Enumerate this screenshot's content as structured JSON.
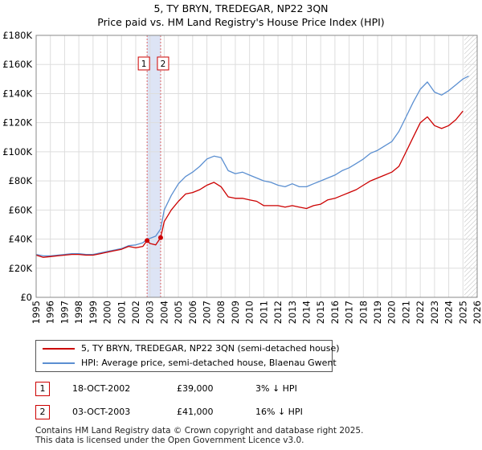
{
  "chart_data": {
    "type": "line",
    "title": "5, TY BRYN, TREDEGAR, NP22 3QN",
    "subtitle": "Price paid vs. HM Land Registry's House Price Index (HPI)",
    "ylabel": "",
    "xlabel": "",
    "ylim": [
      0,
      180000
    ],
    "xlim": [
      1995,
      2026
    ],
    "y_ticks": [
      0,
      20000,
      40000,
      60000,
      80000,
      100000,
      120000,
      140000,
      160000,
      180000
    ],
    "y_tick_labels": [
      "£0",
      "£20K",
      "£40K",
      "£60K",
      "£80K",
      "£100K",
      "£120K",
      "£140K",
      "£160K",
      "£180K"
    ],
    "x_ticks": [
      1995,
      1996,
      1997,
      1998,
      1999,
      2000,
      2001,
      2002,
      2003,
      2004,
      2005,
      2006,
      2007,
      2008,
      2009,
      2010,
      2011,
      2012,
      2013,
      2014,
      2015,
      2016,
      2017,
      2018,
      2019,
      2020,
      2021,
      2022,
      2023,
      2024,
      2025,
      2026
    ],
    "x_tick_labels": [
      "1995",
      "1996",
      "1997",
      "1998",
      "1999",
      "2000",
      "2001",
      "2002",
      "2003",
      "2004",
      "2005",
      "2006",
      "2007",
      "2008",
      "2009",
      "2010",
      "2011",
      "2012",
      "2013",
      "2014",
      "2015",
      "2016",
      "2017",
      "2018",
      "2019",
      "2020",
      "2021",
      "2022",
      "2023",
      "2024",
      "2025",
      "2026"
    ],
    "grid": true,
    "highlight_span": [
      2002.8,
      2003.75
    ],
    "forecast_start": 2025.1,
    "series": [
      {
        "name": "5, TY BRYN, TREDEGAR, NP22 3QN (semi-detached house)",
        "color": "#cc0000",
        "x": [
          1995.0,
          1995.5,
          1996.0,
          1996.5,
          1997.0,
          1997.5,
          1998.0,
          1998.5,
          1999.0,
          1999.5,
          2000.0,
          2000.5,
          2001.0,
          2001.5,
          2002.0,
          2002.5,
          2002.8,
          2003.0,
          2003.4,
          2003.75,
          2004.0,
          2004.5,
          2005.0,
          2005.5,
          2006.0,
          2006.5,
          2007.0,
          2007.5,
          2008.0,
          2008.5,
          2009.0,
          2009.5,
          2010.0,
          2010.5,
          2011.0,
          2011.5,
          2012.0,
          2012.5,
          2013.0,
          2013.5,
          2014.0,
          2014.5,
          2015.0,
          2015.5,
          2016.0,
          2016.5,
          2017.0,
          2017.5,
          2018.0,
          2018.5,
          2019.0,
          2019.5,
          2020.0,
          2020.5,
          2021.0,
          2021.5,
          2022.0,
          2022.5,
          2023.0,
          2023.5,
          2024.0,
          2024.5,
          2025.0
        ],
        "y": [
          29000,
          27500,
          28000,
          28500,
          29000,
          29500,
          29500,
          29000,
          29000,
          30000,
          31000,
          32000,
          33000,
          35000,
          34000,
          35000,
          39000,
          37000,
          36000,
          41000,
          52000,
          60000,
          66000,
          71000,
          72000,
          74000,
          77000,
          79000,
          76000,
          69000,
          68000,
          68000,
          67000,
          66000,
          63000,
          63000,
          63000,
          62000,
          63000,
          62000,
          61000,
          63000,
          64000,
          67000,
          68000,
          70000,
          72000,
          74000,
          77000,
          80000,
          82000,
          84000,
          86000,
          90000,
          100000,
          110000,
          120000,
          124000,
          118000,
          116000,
          118000,
          122000,
          128000
        ]
      },
      {
        "name": "HPI: Average price, semi-detached house, Blaenau Gwent",
        "color": "#5b8fd1",
        "x": [
          1995.0,
          1995.5,
          1996.0,
          1996.5,
          1997.0,
          1997.5,
          1998.0,
          1998.5,
          1999.0,
          1999.5,
          2000.0,
          2000.5,
          2001.0,
          2001.5,
          2002.0,
          2002.5,
          2002.8,
          2003.0,
          2003.4,
          2003.75,
          2004.0,
          2004.5,
          2005.0,
          2005.5,
          2006.0,
          2006.5,
          2007.0,
          2007.5,
          2008.0,
          2008.5,
          2009.0,
          2009.5,
          2010.0,
          2010.5,
          2011.0,
          2011.5,
          2012.0,
          2012.5,
          2013.0,
          2013.5,
          2014.0,
          2014.5,
          2015.0,
          2015.5,
          2016.0,
          2016.5,
          2017.0,
          2017.5,
          2018.0,
          2018.5,
          2019.0,
          2019.5,
          2020.0,
          2020.5,
          2021.0,
          2021.5,
          2022.0,
          2022.5,
          2023.0,
          2023.5,
          2024.0,
          2024.5,
          2025.0,
          2025.4
        ],
        "y": [
          29500,
          28500,
          28500,
          29000,
          29500,
          30000,
          30000,
          29500,
          29500,
          30500,
          31500,
          32500,
          33500,
          35500,
          36000,
          37500,
          40000,
          40500,
          42000,
          47000,
          60000,
          70000,
          78000,
          83000,
          86000,
          90000,
          95000,
          97000,
          96000,
          87000,
          85000,
          86000,
          84000,
          82000,
          80000,
          79000,
          77000,
          76000,
          78000,
          76000,
          76000,
          78000,
          80000,
          82000,
          84000,
          87000,
          89000,
          92000,
          95000,
          99000,
          101000,
          104000,
          107000,
          114000,
          124000,
          134000,
          143000,
          148000,
          141000,
          139000,
          142000,
          146000,
          150000,
          152000
        ]
      }
    ],
    "sales": [
      {
        "id": "1",
        "x": 2002.8,
        "y": 39000
      },
      {
        "id": "2",
        "x": 2003.75,
        "y": 41000
      }
    ]
  },
  "legend": {
    "property_label": "5, TY BRYN, TREDEGAR, NP22 3QN (semi-detached house)",
    "hpi_label": "HPI: Average price, semi-detached house, Blaenau Gwent"
  },
  "transactions": [
    {
      "id": "1",
      "date": "18-OCT-2002",
      "price": "£39,000",
      "hpi": "3% ↓ HPI"
    },
    {
      "id": "2",
      "date": "03-OCT-2003",
      "price": "£41,000",
      "hpi": "16% ↓ HPI"
    }
  ],
  "footer": {
    "line1": "Contains HM Land Registry data © Crown copyright and database right 2025.",
    "line2": "This data is licensed under the Open Government Licence v3.0."
  },
  "colors": {
    "property": "#cc0000",
    "hpi": "#5b8fd1",
    "grid": "#dddddd",
    "highlight": "#dde4f5"
  }
}
